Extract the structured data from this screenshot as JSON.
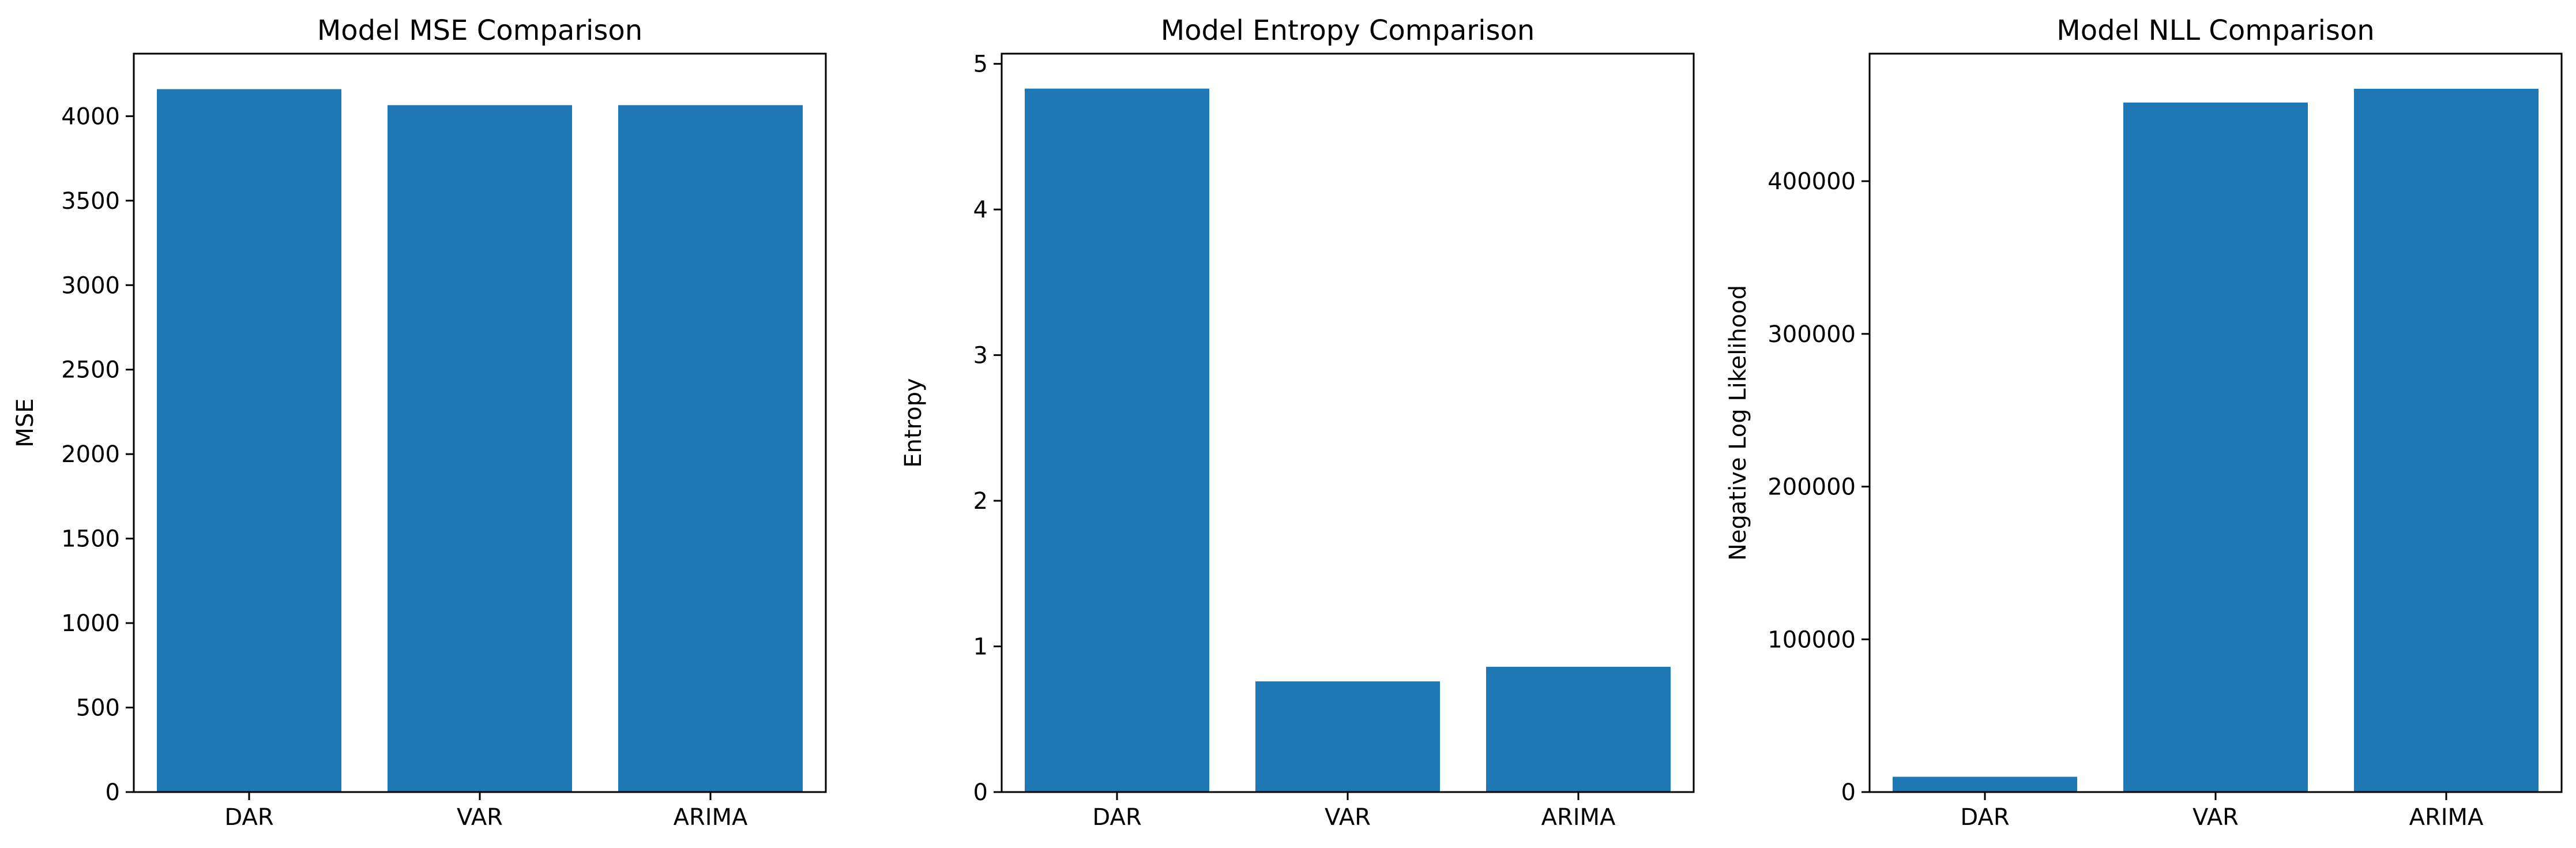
{
  "chart_data": [
    {
      "type": "bar",
      "title": "Model MSE Comparison",
      "xlabel": "",
      "ylabel": "MSE",
      "categories": [
        "DAR",
        "VAR",
        "ARIMA"
      ],
      "values": [
        4160,
        4065,
        4065
      ],
      "ylim": [
        0,
        4370
      ],
      "yticks": [
        0,
        500,
        1000,
        1500,
        2000,
        2500,
        3000,
        3500,
        4000
      ],
      "grid": false,
      "color": "#1f77b4"
    },
    {
      "type": "bar",
      "title": "Model Entropy Comparison",
      "xlabel": "",
      "ylabel": "Entropy",
      "categories": [
        "DAR",
        "VAR",
        "ARIMA"
      ],
      "values": [
        4.83,
        0.76,
        0.86
      ],
      "ylim": [
        0,
        5.07
      ],
      "yticks": [
        0,
        1,
        2,
        3,
        4,
        5
      ],
      "grid": false,
      "color": "#1f77b4"
    },
    {
      "type": "bar",
      "title": "Model NLL Comparison",
      "xlabel": "",
      "ylabel": "Negative Log Likelihood",
      "categories": [
        "DAR",
        "VAR",
        "ARIMA"
      ],
      "values": [
        10000,
        451500,
        460500
      ],
      "ylim": [
        0,
        483500
      ],
      "yticks": [
        0,
        100000,
        200000,
        300000,
        400000
      ],
      "grid": false,
      "color": "#1f77b4"
    }
  ]
}
